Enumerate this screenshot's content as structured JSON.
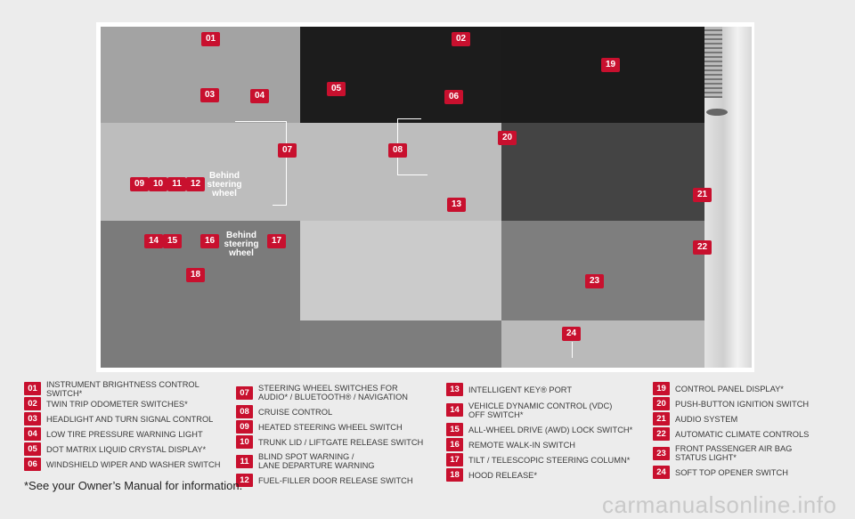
{
  "callouts": {
    "c01": "01",
    "c02": "02",
    "c03": "03",
    "c04": "04",
    "c05": "05",
    "c06": "06",
    "c07": "07",
    "c08": "08",
    "c09": "09",
    "c10": "10",
    "c11": "11",
    "c12": "12",
    "c13": "13",
    "c14": "14",
    "c15": "15",
    "c16": "16",
    "c17": "17",
    "c18": "18",
    "c19": "19",
    "c20": "20",
    "c21": "21",
    "c22": "22",
    "c23": "23",
    "c24": "24"
  },
  "behind_label_1": "Behind\nsteering\nwheel",
  "behind_label_2": "Behind\nsteering\nwheel",
  "legend": [
    {
      "num": "01",
      "text": "INSTRUMENT BRIGHTNESS CONTROL SWITCH*"
    },
    {
      "num": "02",
      "text": "TWIN TRIP ODOMETER SWITCHES*"
    },
    {
      "num": "03",
      "text": "HEADLIGHT AND TURN SIGNAL CONTROL"
    },
    {
      "num": "04",
      "text": "LOW TIRE PRESSURE WARNING LIGHT"
    },
    {
      "num": "05",
      "text": "DOT MATRIX LIQUID CRYSTAL DISPLAY*"
    },
    {
      "num": "06",
      "text": "WINDSHIELD WIPER AND WASHER SWITCH"
    },
    {
      "num": "07",
      "text": "STEERING WHEEL SWITCHES FOR\nAUDIO* / BLUETOOTH® / NAVIGATION"
    },
    {
      "num": "08",
      "text": "CRUISE CONTROL"
    },
    {
      "num": "09",
      "text": "HEATED STEERING WHEEL SWITCH"
    },
    {
      "num": "10",
      "text": "TRUNK LID / LIFTGATE RELEASE SWITCH"
    },
    {
      "num": "11",
      "text": "BLIND SPOT WARNING /\nLANE DEPARTURE WARNING"
    },
    {
      "num": "12",
      "text": "FUEL-FILLER DOOR RELEASE SWITCH"
    },
    {
      "num": "13",
      "text": "INTELLIGENT KEY® PORT"
    },
    {
      "num": "14",
      "text": "VEHICLE DYNAMIC CONTROL (VDC)\nOFF SWITCH*"
    },
    {
      "num": "15",
      "text": "ALL-WHEEL DRIVE (AWD) LOCK SWITCH*"
    },
    {
      "num": "16",
      "text": "REMOTE WALK-IN SWITCH"
    },
    {
      "num": "17",
      "text": "TILT / TELESCOPIC STEERING COLUMN*"
    },
    {
      "num": "18",
      "text": "HOOD RELEASE*"
    },
    {
      "num": "19",
      "text": "CONTROL PANEL DISPLAY*"
    },
    {
      "num": "20",
      "text": "PUSH-BUTTON IGNITION SWITCH"
    },
    {
      "num": "21",
      "text": "AUDIO SYSTEM"
    },
    {
      "num": "22",
      "text": "AUTOMATIC CLIMATE CONTROLS"
    },
    {
      "num": "23",
      "text": "FRONT PASSENGER AIR BAG\nSTATUS LIGHT*"
    },
    {
      "num": "24",
      "text": "SOFT TOP OPENER SWITCH"
    }
  ],
  "footnote": "*See your Owner’s Manual for information.",
  "watermark": "carmanualsonline.info",
  "colors": {
    "badge": "#c8102e",
    "page_bg": "#ececec"
  }
}
